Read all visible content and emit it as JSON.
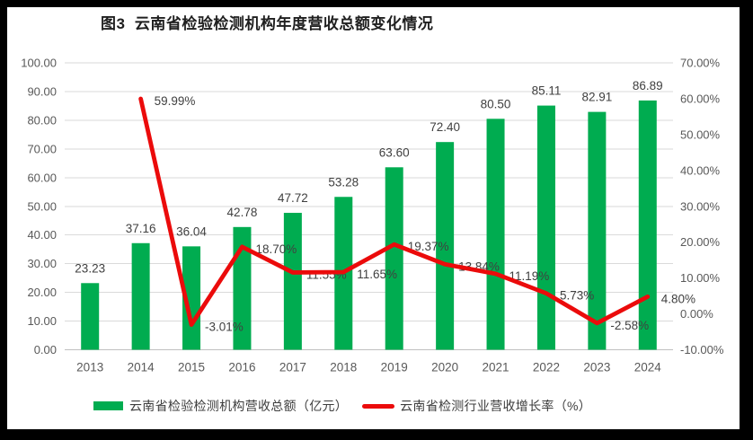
{
  "title": "图3  云南省检验检测机构年度营收总额变化情况",
  "legend": {
    "bar_label": "云南省检验检测机构营收总额（亿元）",
    "line_label": "云南省检测行业营收增长率（%）"
  },
  "colors": {
    "bar": "#00AC50",
    "line": "#EB0B0B",
    "grid": "#DADADA",
    "axis_line": "#BFBFBF",
    "tick_text": "#595959",
    "value_text": "#404040",
    "title_text": "#1F1F1F",
    "frame": "#000000",
    "background": "#FFFFFF"
  },
  "chart_data": {
    "type": "bar+line combo",
    "title": "图3  云南省检验检测机构年度营收总额变化情况",
    "categories": [
      "2013",
      "2014",
      "2015",
      "2016",
      "2017",
      "2018",
      "2019",
      "2020",
      "2021",
      "2022",
      "2023",
      "2024"
    ],
    "series": [
      {
        "name": "云南省检验检测机构营收总额（亿元）",
        "type": "bar",
        "axis": "left",
        "values": [
          23.23,
          37.16,
          36.04,
          42.78,
          47.72,
          53.28,
          63.6,
          72.4,
          80.5,
          85.11,
          82.91,
          86.89
        ],
        "data_labels": [
          "23.23",
          "37.16",
          "36.04",
          "42.78",
          "47.72",
          "53.28",
          "63.60",
          "72.40",
          "80.50",
          "85.11",
          "82.91",
          "86.89"
        ]
      },
      {
        "name": "云南省检测行业营收增长率（%）",
        "type": "line",
        "axis": "right",
        "values": [
          null,
          59.99,
          -3.01,
          18.7,
          11.55,
          11.65,
          19.37,
          13.84,
          11.19,
          5.73,
          -2.58,
          4.8
        ],
        "data_labels": [
          null,
          "59.99%",
          "-3.01%",
          "18.70%",
          "11.55%",
          "11.65%",
          "19.37%",
          "13.84%",
          "11.19%",
          "5.73%",
          "-2.58%",
          "4.80%"
        ]
      }
    ],
    "left_axis": {
      "min": 0,
      "max": 100,
      "step": 10,
      "tick_format": "0.00"
    },
    "right_axis": {
      "min": -10,
      "max": 70,
      "step": 10,
      "tick_format": "0.00%"
    },
    "gridlines": "horizontal",
    "legend_position": "bottom"
  }
}
